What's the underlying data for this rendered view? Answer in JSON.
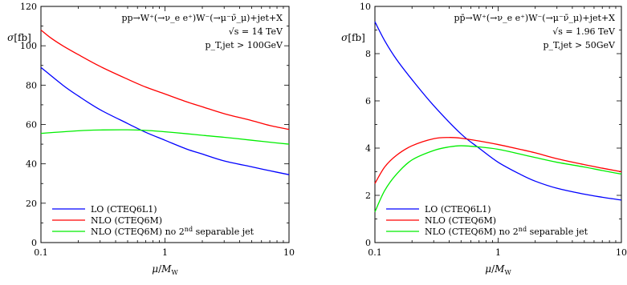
{
  "chart_data": [
    {
      "type": "line",
      "xscale": "log",
      "xlim": [
        0.1,
        10
      ],
      "ylim": [
        0,
        120
      ],
      "xticks": [
        0.1,
        1,
        10
      ],
      "yticks": [
        0,
        20,
        40,
        60,
        80,
        100,
        120
      ],
      "xlabel": "μ/M_W",
      "ylabel": "σ[fb]",
      "annotations": [
        "pp→W⁺(→ν_e e⁺)W⁻(→μ⁻ν̄_μ)+jet+X",
        "√s = 14 TeV",
        "p_T,jet > 100GeV"
      ],
      "legend_position": "bottom-left",
      "series": [
        {
          "name": "LO (CTEQ6L1)",
          "color": "#0000ff",
          "x": [
            0.1,
            0.15,
            0.2,
            0.3,
            0.5,
            0.7,
            1,
            1.5,
            2,
            3,
            5,
            7,
            10
          ],
          "y": [
            89,
            80,
            74.5,
            67.5,
            60.5,
            56,
            52,
            47.5,
            45,
            41.5,
            38.5,
            36.5,
            34.5
          ]
        },
        {
          "name": "NLO (CTEQ6M)",
          "color": "#ff0000",
          "x": [
            0.1,
            0.12,
            0.15,
            0.2,
            0.3,
            0.5,
            0.7,
            1,
            1.5,
            2,
            3,
            5,
            7,
            10
          ],
          "y": [
            108,
            104,
            100,
            95.5,
            89.5,
            83,
            79,
            75.5,
            71.5,
            69,
            65.5,
            62,
            59.5,
            57.5
          ]
        },
        {
          "name": "NLO (CTEQ6M) no 2nd separable jet",
          "color": "#00ee00",
          "x": [
            0.1,
            0.2,
            0.3,
            0.5,
            0.7,
            1,
            1.5,
            2,
            3,
            5,
            7,
            10
          ],
          "y": [
            55.5,
            56.8,
            57.2,
            57.3,
            57,
            56.3,
            55.3,
            54.5,
            53.5,
            52,
            51,
            50
          ]
        }
      ]
    },
    {
      "type": "line",
      "xscale": "log",
      "xlim": [
        0.1,
        10
      ],
      "ylim": [
        0,
        10
      ],
      "xticks": [
        0.1,
        1,
        10
      ],
      "yticks": [
        0,
        2,
        4,
        6,
        8,
        10
      ],
      "xlabel": "μ/M_W",
      "ylabel": "σ[fb]",
      "annotations": [
        "pp̄→W⁺(→ν_e e⁺)W⁻(→μ⁻ν̄_μ)+jet+X",
        "√s = 1.96 TeV",
        "p_T,jet > 50GeV"
      ],
      "legend_position": "bottom-left",
      "series": [
        {
          "name": "LO (CTEQ6L1)",
          "color": "#0000ff",
          "x": [
            0.1,
            0.12,
            0.15,
            0.2,
            0.3,
            0.5,
            0.7,
            1,
            1.5,
            2,
            3,
            5,
            7,
            10
          ],
          "y": [
            9.35,
            8.55,
            7.75,
            6.9,
            5.8,
            4.6,
            4.0,
            3.4,
            2.9,
            2.6,
            2.3,
            2.05,
            1.92,
            1.8
          ]
        },
        {
          "name": "NLO (CTEQ6M)",
          "color": "#ff0000",
          "x": [
            0.1,
            0.12,
            0.15,
            0.2,
            0.3,
            0.4,
            0.5,
            0.7,
            1,
            1.5,
            2,
            3,
            5,
            7,
            10
          ],
          "y": [
            2.5,
            3.2,
            3.7,
            4.1,
            4.4,
            4.45,
            4.42,
            4.3,
            4.15,
            3.95,
            3.8,
            3.55,
            3.3,
            3.15,
            3.0
          ]
        },
        {
          "name": "NLO (CTEQ6M) no 2nd separable jet",
          "color": "#00ee00",
          "x": [
            0.1,
            0.12,
            0.15,
            0.2,
            0.3,
            0.4,
            0.5,
            0.7,
            1,
            1.5,
            2,
            3,
            5,
            7,
            10
          ],
          "y": [
            1.3,
            2.2,
            2.9,
            3.5,
            3.9,
            4.05,
            4.1,
            4.05,
            3.95,
            3.75,
            3.6,
            3.4,
            3.2,
            3.05,
            2.9
          ]
        }
      ]
    }
  ]
}
